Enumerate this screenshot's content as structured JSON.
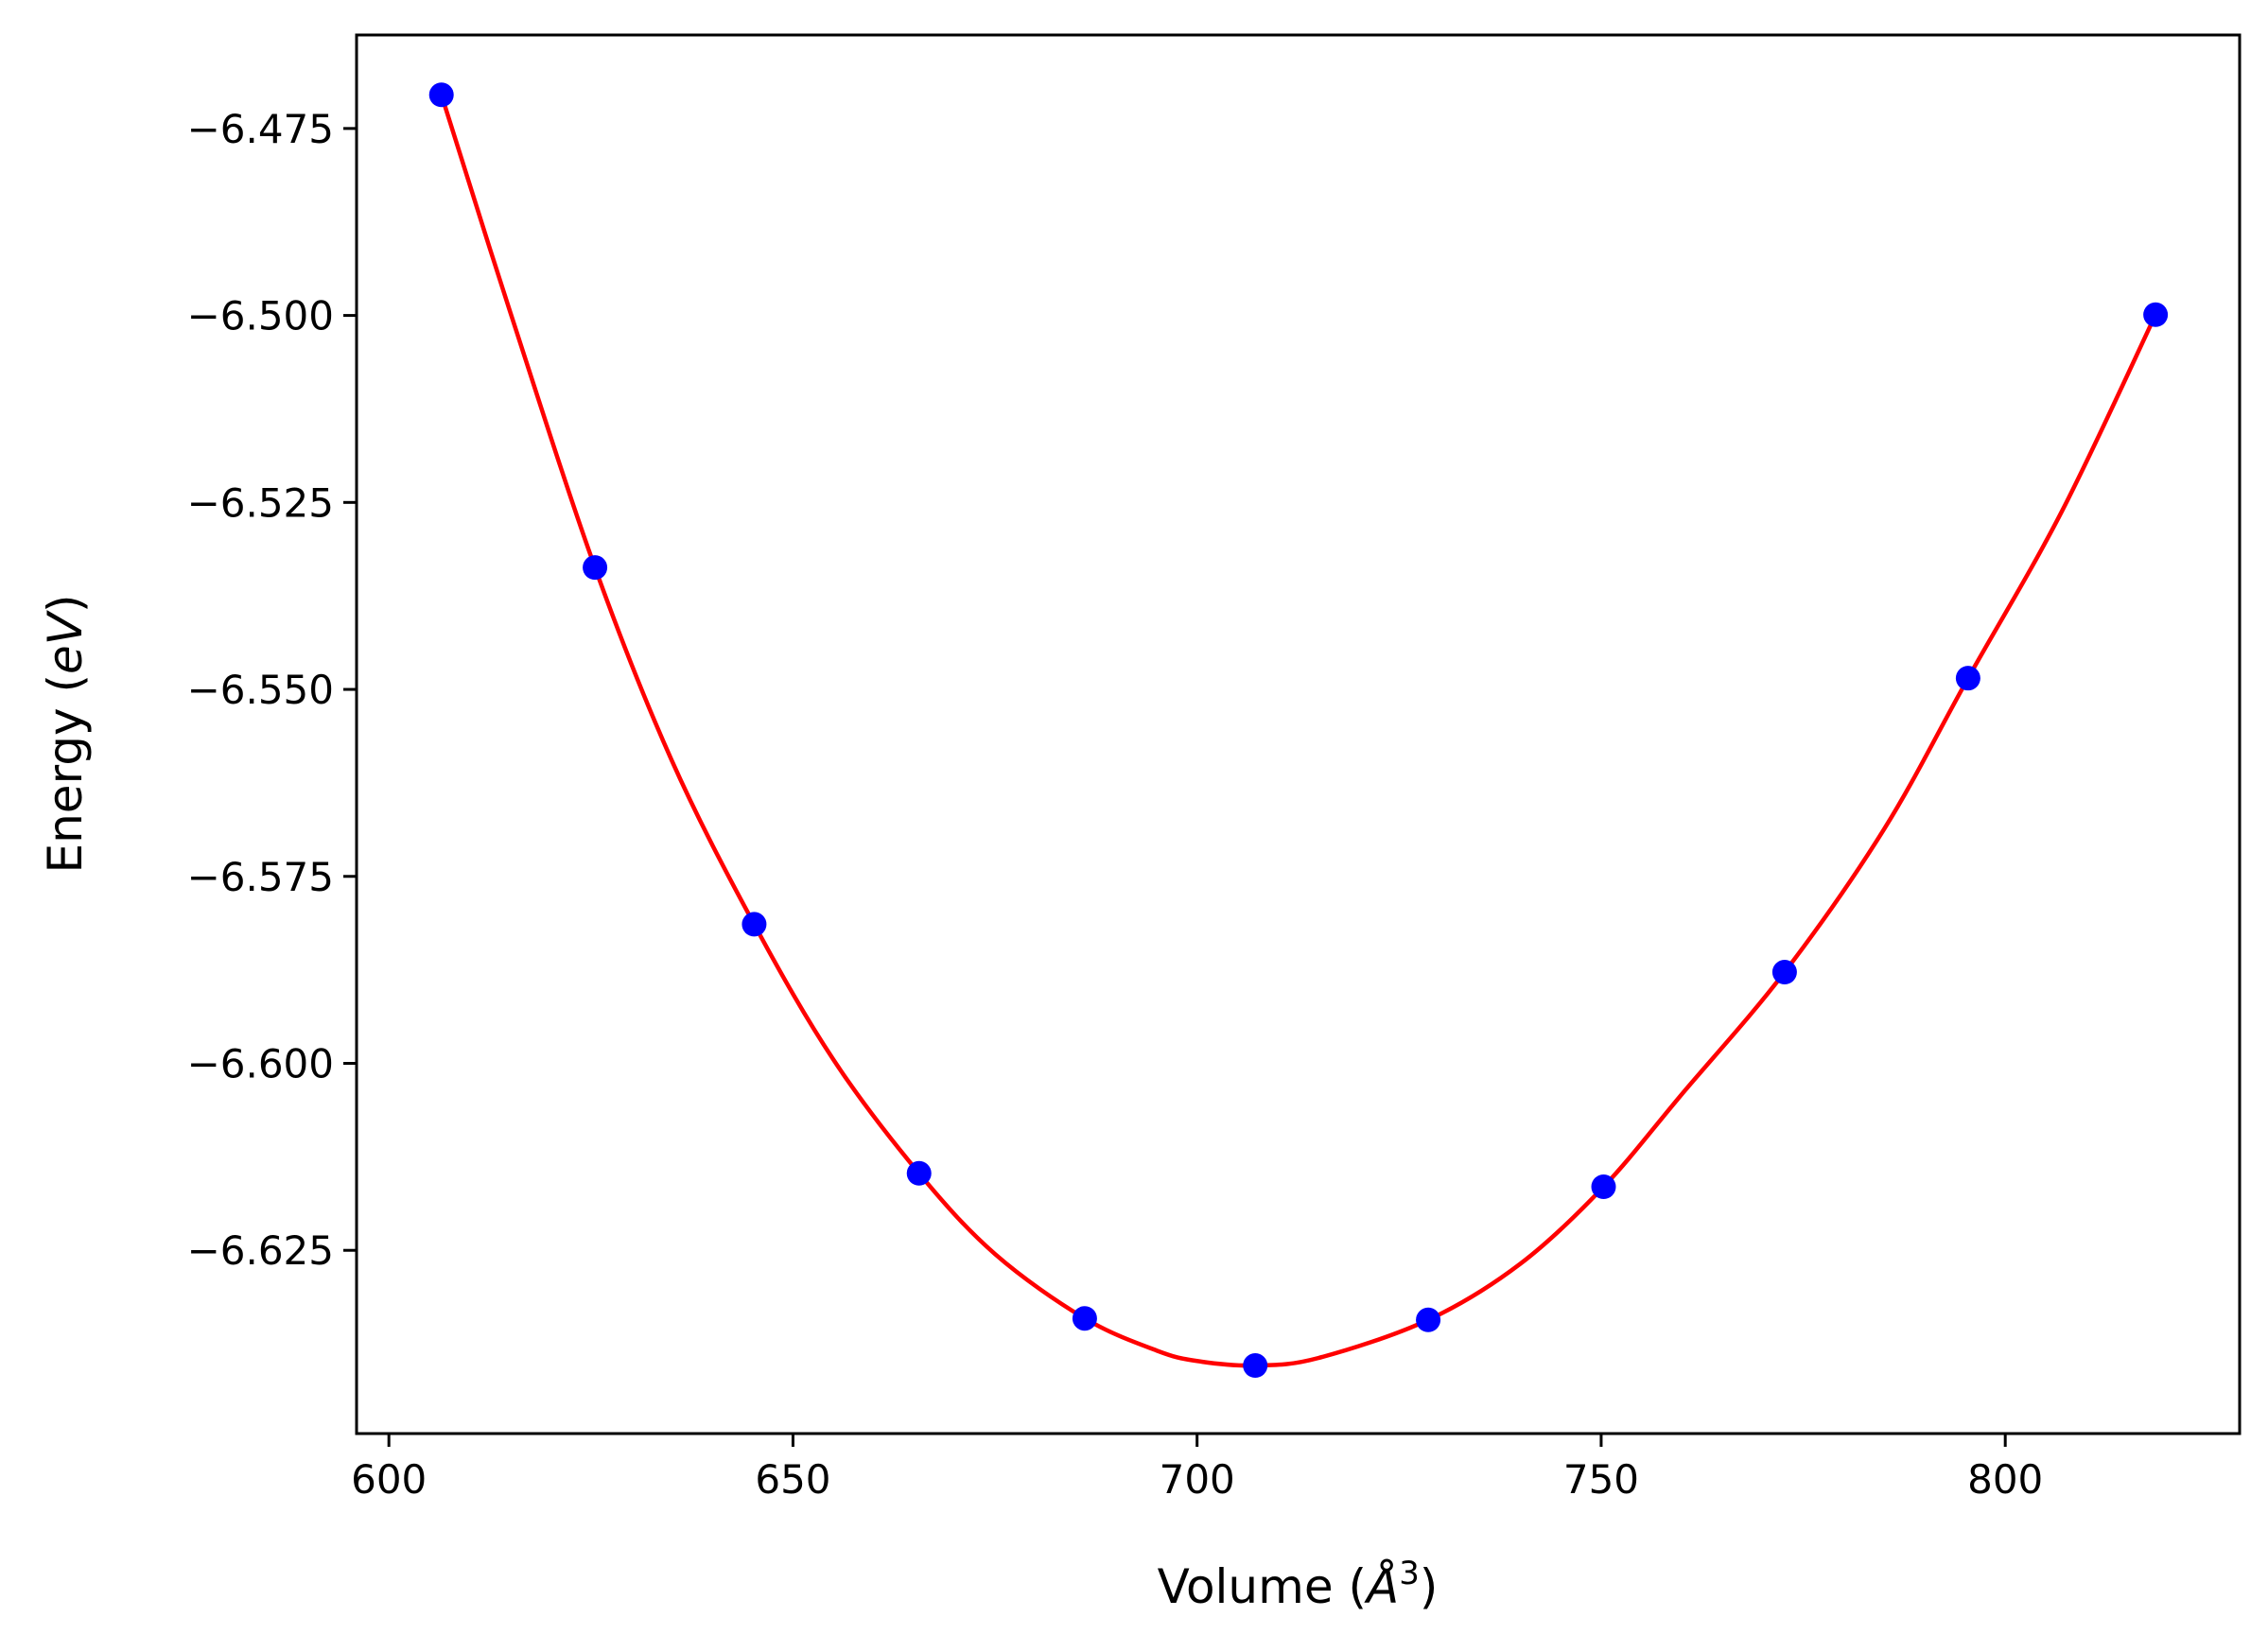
{
  "chart_data": {
    "type": "line",
    "xlabel": "Volume (",
    "xlabel_unit": "Å",
    "xlabel_sup": "3",
    "xlabel_close": ")",
    "ylabel": "Energy (",
    "ylabel_unit": "eV",
    "ylabel_close": ")",
    "xlim": [
      596,
      829
    ],
    "ylim": [
      -6.6495,
      -6.4625
    ],
    "x_ticks": [
      {
        "value": 600,
        "label": "600"
      },
      {
        "value": 650,
        "label": "650"
      },
      {
        "value": 700,
        "label": "700"
      },
      {
        "value": 750,
        "label": "750"
      },
      {
        "value": 800,
        "label": "800"
      }
    ],
    "y_ticks": [
      {
        "value": -6.475,
        "label": "−6.475"
      },
      {
        "value": -6.5,
        "label": "−6.500"
      },
      {
        "value": -6.525,
        "label": "−6.525"
      },
      {
        "value": -6.55,
        "label": "−6.550"
      },
      {
        "value": -6.575,
        "label": "−6.575"
      },
      {
        "value": -6.6,
        "label": "−6.600"
      },
      {
        "value": -6.625,
        "label": "−6.625"
      }
    ],
    "series": [
      {
        "kind": "points",
        "color": "#0000ff",
        "x": [
          606.5,
          625.5,
          645.2,
          665.6,
          686.1,
          707.2,
          728.6,
          750.3,
          772.7,
          795.4,
          818.6
        ],
        "y": [
          -6.4705,
          -6.5337,
          -6.5814,
          -6.6147,
          -6.6341,
          -6.6404,
          -6.6343,
          -6.6165,
          -6.5878,
          -6.5485,
          -6.4999
        ]
      },
      {
        "kind": "fit-curve",
        "color": "#ff0000",
        "x": [
          606.5,
          615,
          625.5,
          635,
          645.2,
          655,
          665.6,
          675,
          686.1,
          695,
          700,
          707.2,
          715,
          728.6,
          740,
          750.3,
          760,
          772.7,
          785,
          795.4,
          807,
          818.6
        ],
        "y": [
          -6.4705,
          -6.4995,
          -6.5337,
          -6.5595,
          -6.5814,
          -6.5995,
          -6.6147,
          -6.6255,
          -6.6341,
          -6.6384,
          -6.6398,
          -6.6404,
          -6.6394,
          -6.6343,
          -6.6268,
          -6.6165,
          -6.6041,
          -6.5878,
          -6.5687,
          -6.5485,
          -6.5262,
          -6.4999
        ]
      }
    ],
    "grid": false,
    "legend": "none"
  }
}
